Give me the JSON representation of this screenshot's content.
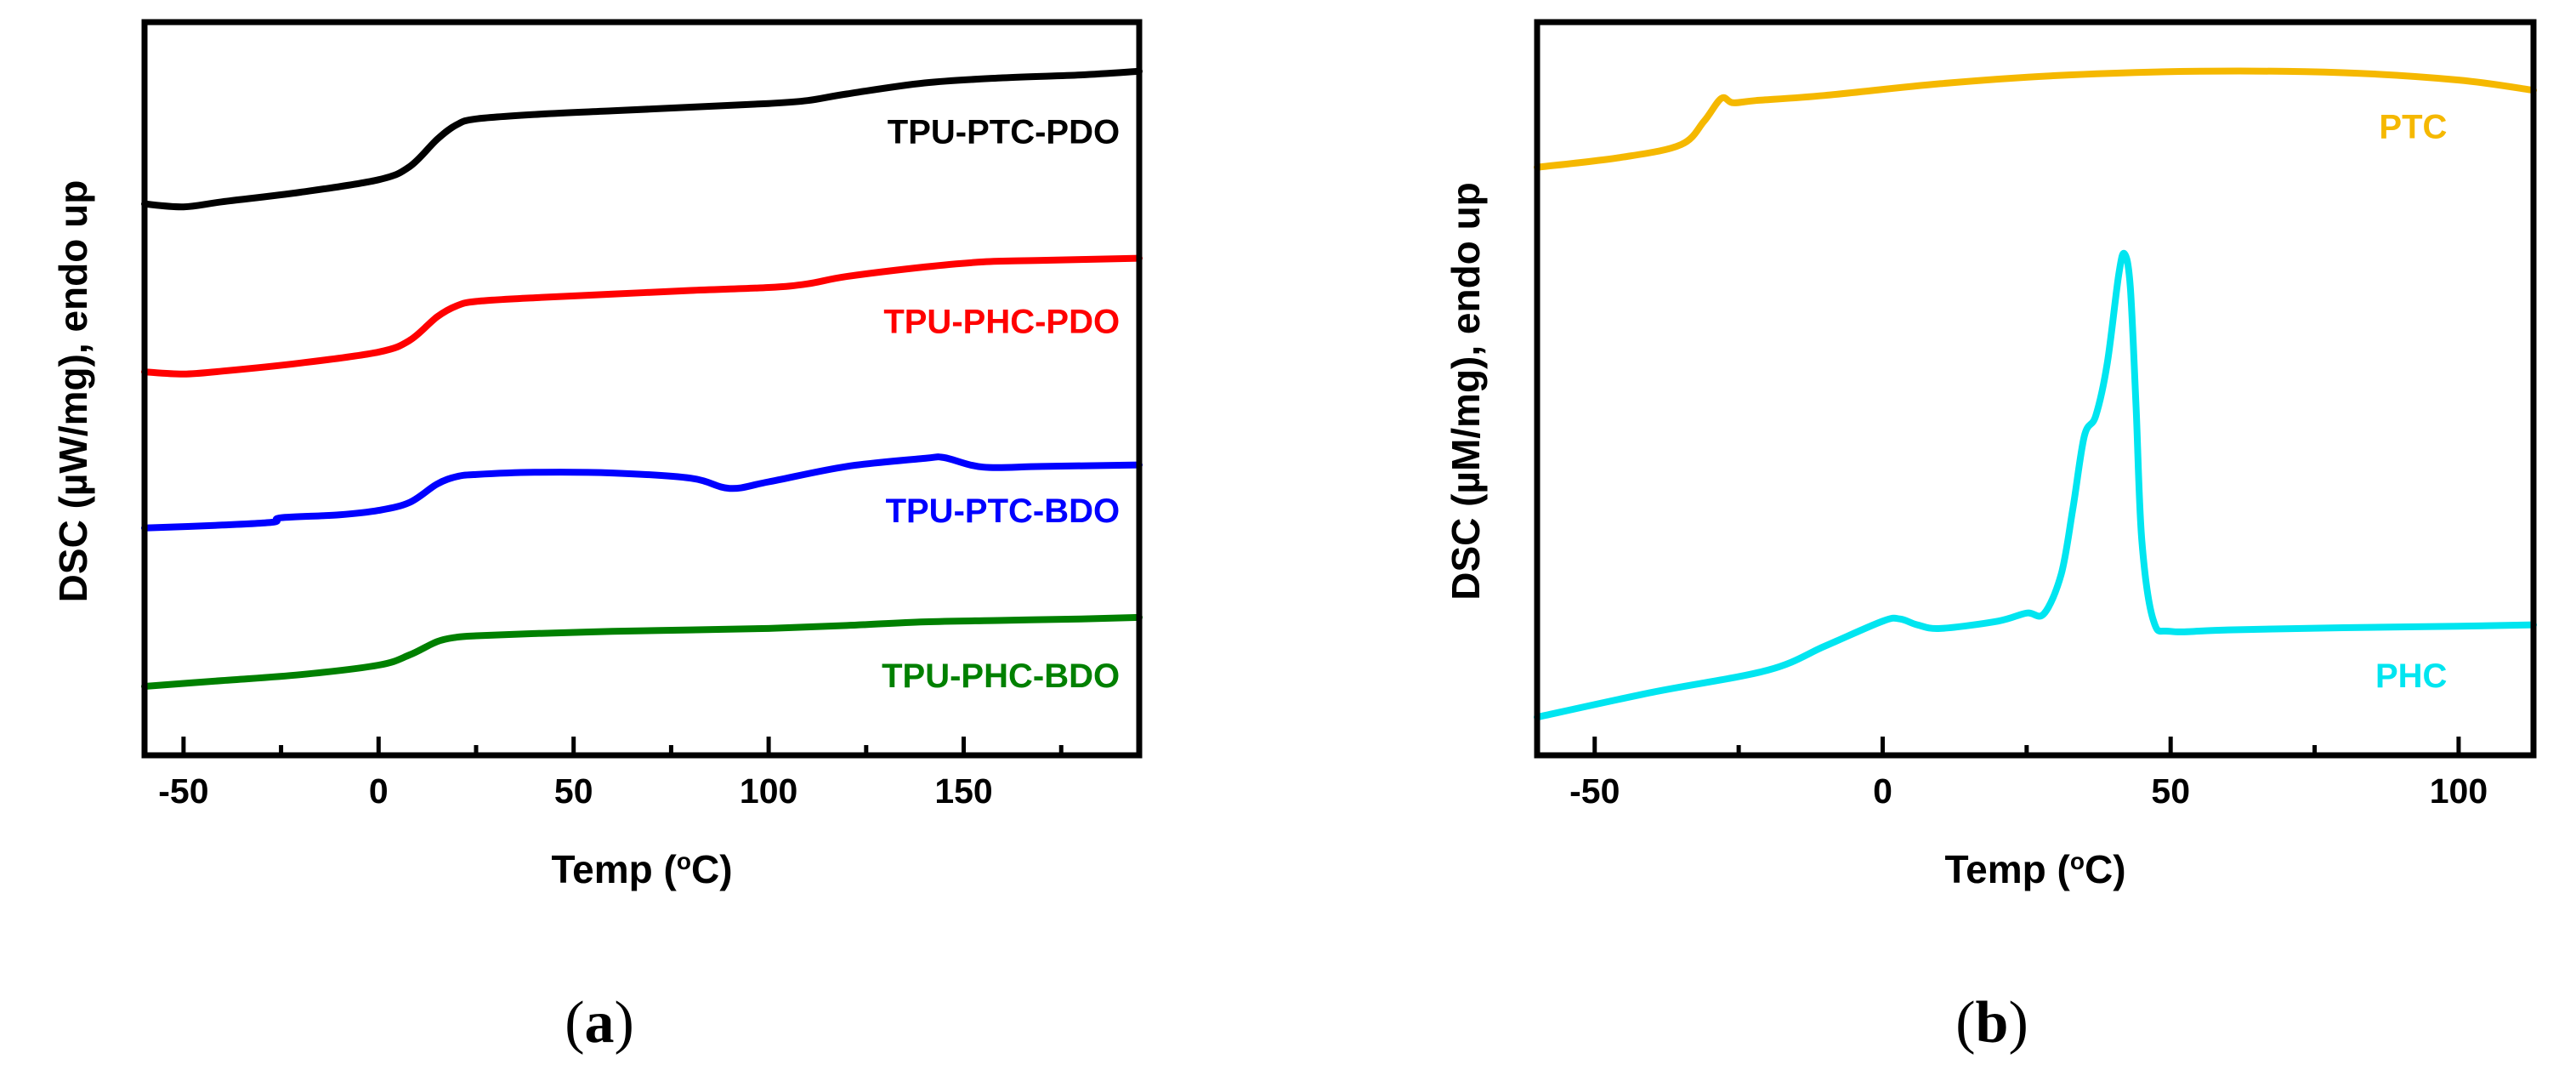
{
  "chart_data": [
    {
      "type": "line",
      "panel": "(a)",
      "panel_letter": "a",
      "xlabel": "Temp (°C)",
      "xlabel_parts": {
        "pre": "Temp (",
        "sup": "o",
        "post": "C)"
      },
      "ylabel": "DSC (µW/mg), endo up",
      "xlim": [
        -60,
        195
      ],
      "ylim": [
        0,
        100
      ],
      "xticks": [
        -50,
        0,
        50,
        100,
        150
      ],
      "yticks_shown": false,
      "series": [
        {
          "name": "TPU-PTC-PDO",
          "color": "#000000",
          "x": [
            -60,
            -50,
            -40,
            -20,
            0,
            8,
            15,
            20,
            25,
            40,
            60,
            80,
            100,
            110,
            120,
            140,
            160,
            180,
            195
          ],
          "y": [
            75.2,
            74.8,
            75.5,
            76.8,
            78.5,
            80.3,
            84.0,
            86.0,
            86.8,
            87.4,
            87.9,
            88.4,
            88.9,
            89.3,
            90.2,
            91.7,
            92.4,
            92.8,
            93.3
          ],
          "label_anchor": [
            190,
            84.7
          ]
        },
        {
          "name": "TPU-PHC-PDO",
          "color": "#ff0000",
          "x": [
            -60,
            -50,
            -40,
            -20,
            0,
            8,
            15,
            20,
            25,
            40,
            60,
            80,
            100,
            110,
            120,
            140,
            155,
            170,
            195
          ],
          "y": [
            52.3,
            52.0,
            52.4,
            53.5,
            55.0,
            56.6,
            59.8,
            61.3,
            61.9,
            62.4,
            62.9,
            63.4,
            63.8,
            64.3,
            65.3,
            66.6,
            67.3,
            67.5,
            67.8
          ],
          "label_anchor": [
            190,
            58.8
          ]
        },
        {
          "name": "TPU-PTC-BDO",
          "color": "#0000ff",
          "x": [
            -60,
            -40,
            -27,
            -25,
            -10,
            0,
            8,
            15,
            20,
            25,
            40,
            60,
            80,
            90,
            100,
            120,
            140,
            145,
            155,
            170,
            195
          ],
          "y": [
            31.0,
            31.4,
            31.8,
            32.4,
            32.8,
            33.4,
            34.5,
            37.0,
            38.0,
            38.3,
            38.6,
            38.5,
            37.8,
            36.4,
            37.3,
            39.4,
            40.5,
            40.6,
            39.3,
            39.4,
            39.6
          ],
          "label_anchor": [
            190,
            33.0
          ]
        },
        {
          "name": "TPU-PHC-BDO",
          "color": "#008000",
          "x": [
            -60,
            -40,
            -20,
            0,
            8,
            15,
            20,
            25,
            40,
            60,
            80,
            100,
            120,
            140,
            160,
            180,
            195
          ],
          "y": [
            9.4,
            10.2,
            11.0,
            12.3,
            13.7,
            15.5,
            16.1,
            16.3,
            16.6,
            16.9,
            17.1,
            17.3,
            17.7,
            18.2,
            18.4,
            18.6,
            18.8
          ],
          "label_anchor": [
            190,
            10.5
          ]
        }
      ]
    },
    {
      "type": "line",
      "panel": "(b)",
      "panel_letter": "b",
      "xlabel": "Temp (°C)",
      "xlabel_parts": {
        "pre": "Temp (",
        "sup": "o",
        "post": "C)"
      },
      "ylabel": "DSC (µM/mg), endo up",
      "xlim": [
        -60,
        113
      ],
      "ylim": [
        0,
        100
      ],
      "xticks": [
        -50,
        0,
        50,
        100
      ],
      "yticks_shown": false,
      "series": [
        {
          "name": "PTC",
          "color": "#f5b800",
          "x": [
            -60,
            -45,
            -35,
            -31,
            -28,
            -26,
            -22,
            -10,
            10,
            30,
            55,
            80,
            100,
            113
          ],
          "y": [
            80.2,
            81.6,
            83.3,
            86.5,
            89.6,
            89.0,
            89.3,
            90.0,
            91.6,
            92.7,
            93.3,
            93.1,
            92.1,
            90.7
          ],
          "label_anchor": [
            98,
            85.4
          ]
        },
        {
          "name": "PHC",
          "color": "#00e5f0",
          "x": [
            -60,
            -40,
            -20,
            -10,
            0,
            3,
            6,
            10,
            20,
            25,
            28,
            31,
            33,
            35,
            37,
            39,
            41,
            42,
            43,
            44,
            45,
            47,
            50,
            60,
            80,
            100,
            113
          ],
          "y": [
            5.2,
            8.6,
            11.6,
            14.9,
            18.3,
            18.6,
            17.8,
            17.3,
            18.3,
            19.4,
            19.3,
            24.7,
            33.5,
            43.5,
            46.3,
            53.5,
            65.6,
            68.4,
            63.8,
            47.4,
            29.3,
            18.4,
            16.9,
            17.1,
            17.4,
            17.6,
            17.8
          ],
          "label_anchor": [
            98,
            10.5
          ]
        }
      ]
    }
  ]
}
